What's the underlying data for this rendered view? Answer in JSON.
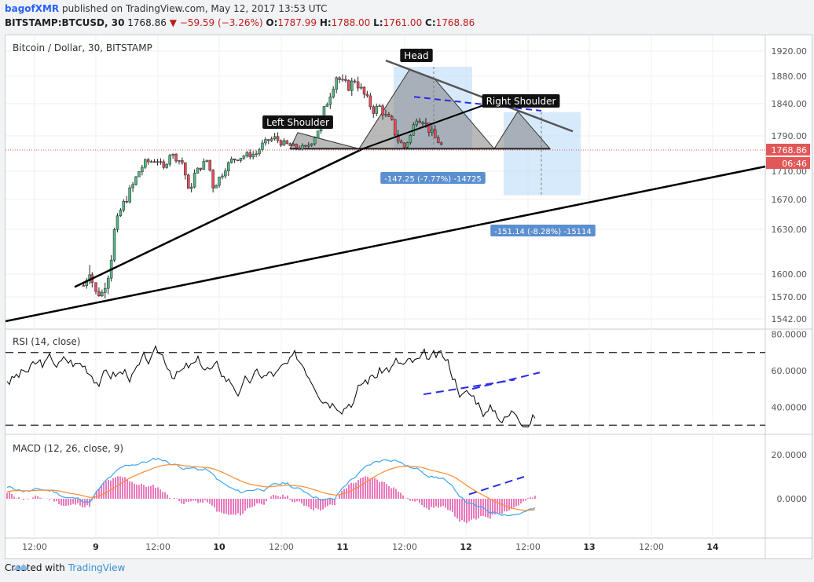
{
  "header": {
    "author": "bagofXMR",
    "published_text": "published on TradingView.com, May 12, 2017 13:53 UTC",
    "symbol": "BITSTAMP:BTCUSD, 30",
    "last_price": "1768.86",
    "change_arrow": "▼",
    "change": "−59.59 (−3.26%)",
    "o_label": "O:",
    "o_value": "1787.99",
    "h_label": "H:",
    "h_value": "1788.00",
    "l_label": "L:",
    "l_value": "1761.00",
    "c_label": "C:",
    "c_value": "1768.86"
  },
  "footer": {
    "created_with": "Created with",
    "brand": "TradingView"
  },
  "colors": {
    "up": "#53b987",
    "down": "#eb4d5c",
    "neutral": "#000000",
    "rsi_line": "#000000",
    "macd_line": "#3ea6f0",
    "signal_line": "#ff8a30",
    "hist": "#e040a0",
    "pattern_fill": "#808080",
    "measure_fill": "#bcdcfa",
    "measure_label_bg": "#5b8fd0",
    "trend_blue": "#2a2ae8",
    "price_badge": "#e25757"
  },
  "chart_data": [
    {
      "type": "candlestick",
      "title": "Bitcoin / Dollar, 30, BITSTAMP",
      "y_ticks": [
        "1920.00",
        "1880.00",
        "1840.00",
        "1790.00",
        "1710.00",
        "1670.00",
        "1630.00",
        "1600.00",
        "1570.00",
        "1542.00"
      ],
      "x_ticks": [
        "12:00",
        "9",
        "12:00",
        "10",
        "12:00",
        "11",
        "12:00",
        "12",
        "12:00",
        "13",
        "12:00",
        "14"
      ],
      "price_badge": "1768.86",
      "time_badge": "06:46",
      "close_path": [
        [
          "8.9",
          1585
        ],
        [
          "8.95",
          1605
        ],
        [
          "8.97",
          1590
        ],
        [
          "9.0",
          1575
        ],
        [
          "9.05",
          1575
        ],
        [
          "9.1",
          1600
        ],
        [
          "9.2",
          1655
        ],
        [
          "9.3",
          1690
        ],
        [
          "9.4",
          1730
        ],
        [
          "9.5",
          1735
        ],
        [
          "9.55",
          1715
        ],
        [
          "9.6",
          1750
        ],
        [
          "9.7",
          1730
        ],
        [
          "9.75",
          1680
        ],
        [
          "9.8",
          1705
        ],
        [
          "9.85",
          1720
        ],
        [
          "9.9",
          1735
        ],
        [
          "9.95",
          1690
        ],
        [
          "10.0",
          1700
        ],
        [
          "10.1",
          1735
        ],
        [
          "10.2",
          1745
        ],
        [
          "10.3",
          1750
        ],
        [
          "10.35",
          1770
        ],
        [
          "10.4",
          1780
        ],
        [
          "10.45",
          1785
        ],
        [
          "10.5",
          1775
        ],
        [
          "10.6",
          1765
        ],
        [
          "10.7",
          1762
        ],
        [
          "10.75",
          1778
        ],
        [
          "10.8",
          1800
        ],
        [
          "10.85",
          1830
        ],
        [
          "10.9",
          1855
        ],
        [
          "10.95",
          1880
        ],
        [
          "11.0",
          1870
        ],
        [
          "11.05",
          1865
        ],
        [
          "11.1",
          1875
        ],
        [
          "11.15",
          1860
        ],
        [
          "11.2",
          1845
        ],
        [
          "11.25",
          1830
        ],
        [
          "11.3",
          1835
        ],
        [
          "11.35",
          1820
        ],
        [
          "11.4",
          1810
        ],
        [
          "11.45",
          1780
        ],
        [
          "11.5",
          1765
        ],
        [
          "11.55",
          1790
        ],
        [
          "11.6",
          1820
        ],
        [
          "11.65",
          1815
        ],
        [
          "11.7",
          1800
        ],
        [
          "11.75",
          1785
        ],
        [
          "11.8",
          1768.86
        ]
      ],
      "annotations": [
        "Left Shoulder",
        "Head",
        "Right Shoulder"
      ],
      "measurements": [
        {
          "label": "-147.25 (-7.77%) -14725"
        },
        {
          "label": "-151.14 (-8.28%) -15114"
        }
      ]
    },
    {
      "type": "line",
      "title": "RSI (14, close)",
      "y_ticks": [
        "80.0000",
        "60.0000",
        "40.0000"
      ],
      "levels": [
        70,
        30
      ],
      "ylim": [
        25,
        82
      ]
    },
    {
      "type": "line",
      "title": "MACD (12, 26, close, 9)",
      "y_ticks": [
        "20.0000",
        "0.0000"
      ],
      "series": [
        {
          "role": "macd"
        },
        {
          "role": "signal"
        },
        {
          "role": "histogram"
        }
      ]
    }
  ]
}
